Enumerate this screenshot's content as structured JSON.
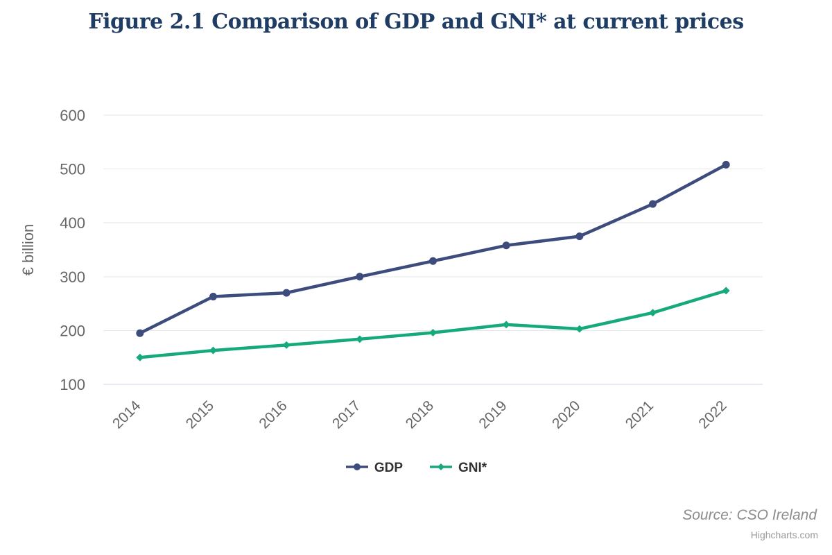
{
  "chart": {
    "title": "Figure 2.1 Comparison of GDP and GNI* at current prices"
  },
  "chart_data": {
    "type": "line",
    "title": "Figure 2.1 Comparison of GDP and GNI* at current prices",
    "categories": [
      "2014",
      "2015",
      "2016",
      "2017",
      "2018",
      "2019",
      "2020",
      "2021",
      "2022"
    ],
    "series": [
      {
        "name": "GDP",
        "color": "#3d4c7c",
        "marker": "circle",
        "values": [
          195,
          263,
          270,
          300,
          329,
          358,
          375,
          435,
          508
        ]
      },
      {
        "name": "GNI*",
        "color": "#16a97c",
        "marker": "diamond",
        "values": [
          150,
          163,
          173,
          184,
          196,
          211,
          203,
          233,
          274
        ]
      }
    ],
    "xlabel": "",
    "ylabel": "€ billion",
    "ylim": [
      100,
      600
    ],
    "ytick_step": 100,
    "yticks": [
      100,
      200,
      300,
      400,
      500,
      600
    ],
    "grid": true,
    "legend_position": "bottom",
    "x_label_rotation": -45
  },
  "footer": {
    "source": "Source: CSO Ireland",
    "credits": "Highcharts.com"
  },
  "colors": {
    "title": "#1e3c64",
    "axis_label": "#666666",
    "grid_line": "#e6e6e6",
    "axis_line": "#ccd6eb",
    "legend_text": "#333333",
    "source_text": "#8c8c8c",
    "credits_text": "#999999"
  }
}
